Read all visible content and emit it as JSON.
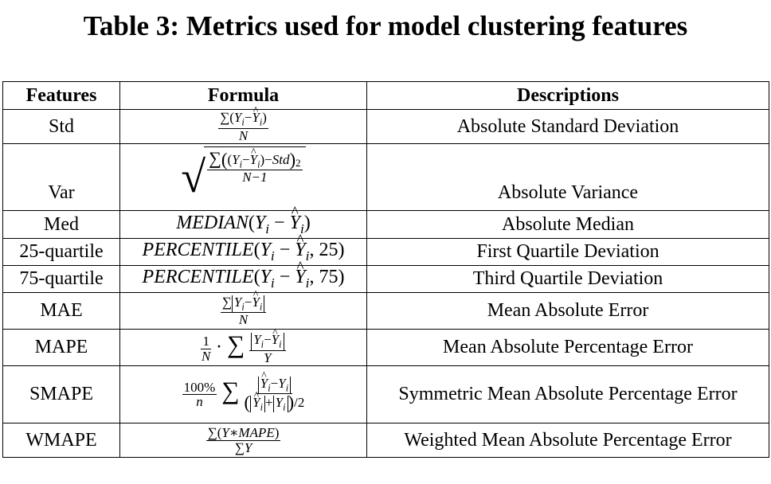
{
  "caption": "Table 3: Metrics used for model clustering features",
  "headers": {
    "features": "Features",
    "formula": "Formula",
    "descriptions": "Descriptions"
  },
  "rows": [
    {
      "feature": "Std",
      "description": "Absolute Standard Deviation"
    },
    {
      "feature": "Var",
      "description": "Absolute Variance"
    },
    {
      "feature": "Med",
      "description": "Absolute Median"
    },
    {
      "feature": "25-quartile",
      "description": "First Quartile Deviation"
    },
    {
      "feature": "75-quartile",
      "description": "Third Quartile Deviation"
    },
    {
      "feature": "MAE",
      "description": "Mean Absolute Error"
    },
    {
      "feature": "MAPE",
      "description": "Mean Absolute Percentage Error"
    },
    {
      "feature": "SMAPE",
      "description": "Symmetric Mean Absolute Percentage Error"
    },
    {
      "feature": "WMAPE",
      "description": "Weighted Mean Absolute Percentage Error"
    }
  ],
  "formula_text": {
    "median": "MEDIAN",
    "percentile": "PERCENTILE",
    "p25": "25",
    "p75": "75",
    "std_sym": "Std",
    "n_upper": "N",
    "n_minus_one": "N−1",
    "n_lower": "n",
    "hundred_pct": "100%",
    "y": "Y",
    "one": "1",
    "two": "2",
    "mape_sym": "MAPE"
  }
}
